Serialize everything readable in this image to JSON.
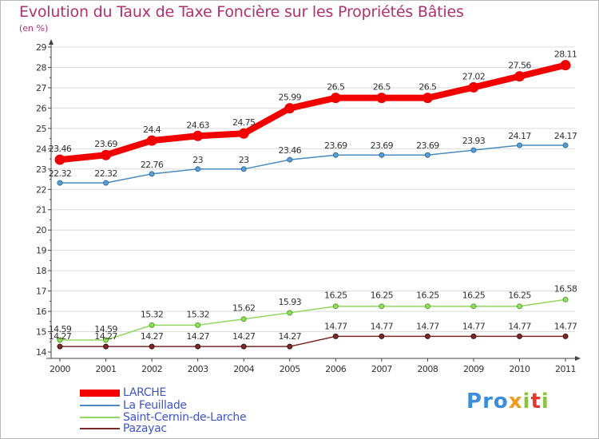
{
  "title": "Evolution du Taux de Taxe Foncière sur les Propriétés Bâties",
  "unit": "(en %)",
  "logo": [
    "P",
    "r",
    "o",
    "x",
    "i",
    "t",
    "i"
  ],
  "chart_data": {
    "type": "line",
    "title": "Evolution du Taux de Taxe Foncière sur les Propriétés Bâties",
    "ylabel": "(en %)",
    "xlabel": "",
    "ylim": [
      14,
      29
    ],
    "y_ticks": [
      "14",
      "15",
      "16",
      "17",
      "18",
      "19",
      "20",
      "21",
      "22",
      "23",
      "24",
      "25",
      "26",
      "27",
      "28",
      "29"
    ],
    "categories": [
      "2000",
      "2001",
      "2002",
      "2003",
      "2004",
      "2005",
      "2006",
      "2007",
      "2008",
      "2009",
      "2010",
      "2011"
    ],
    "series": [
      {
        "name": "LARCHE",
        "color": "#f20000",
        "values": [
          23.46,
          23.69,
          24.4,
          24.63,
          24.75,
          25.99,
          26.5,
          26.5,
          26.5,
          27.02,
          27.56,
          28.11
        ],
        "labels": [
          "23.46",
          "23.69",
          "24.4",
          "24.63",
          "24.75",
          "25.99",
          "26.5",
          "26.5",
          "26.5",
          "27.02",
          "27.56",
          "28.11"
        ]
      },
      {
        "name": "La Feuillade",
        "color": "#4a8ac0",
        "values": [
          22.32,
          22.32,
          22.76,
          23,
          23,
          23.46,
          23.69,
          23.69,
          23.69,
          23.93,
          24.17,
          24.17
        ],
        "labels": [
          "22.32",
          "22.32",
          "22.76",
          "23",
          "23",
          "23.46",
          "23.69",
          "23.69",
          "23.69",
          "23.93",
          "24.17",
          "24.17"
        ]
      },
      {
        "name": "Saint-Cernin-de-Larche",
        "color": "#90d860",
        "values": [
          14.59,
          14.59,
          15.32,
          15.32,
          15.62,
          15.93,
          16.25,
          16.25,
          16.25,
          16.25,
          16.25,
          16.58
        ],
        "labels": [
          "14.59",
          "14.59",
          "15.32",
          "15.32",
          "15.62",
          "15.93",
          "16.25",
          "16.25",
          "16.25",
          "16.25",
          "16.25",
          "16.58"
        ]
      },
      {
        "name": "Pazayac",
        "color": "#7a2a2a",
        "values": [
          14.27,
          14.27,
          14.27,
          14.27,
          14.27,
          14.27,
          14.77,
          14.77,
          14.77,
          14.77,
          14.77,
          14.77
        ],
        "labels": [
          "14.27",
          "14.27",
          "14.27",
          "14.27",
          "14.27",
          "14.27",
          "14.77",
          "14.77",
          "14.77",
          "14.77",
          "14.77",
          "14.77"
        ]
      }
    ]
  }
}
